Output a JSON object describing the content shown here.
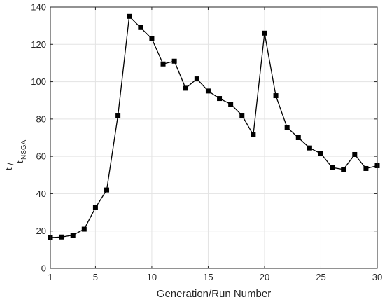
{
  "chart_data": {
    "type": "line",
    "title": "",
    "xlabel": "Generation/Run Number",
    "ylabel_parts": {
      "numerator": "t",
      "slash": "/",
      "denominator": "t",
      "denominator_subscript": "NSGA"
    },
    "xlim": [
      1,
      30
    ],
    "ylim": [
      0,
      140
    ],
    "xticks": [
      1,
      5,
      10,
      15,
      20,
      25,
      30
    ],
    "yticks": [
      0,
      20,
      40,
      60,
      80,
      100,
      120,
      140
    ],
    "grid": true,
    "marker": "square",
    "color": "#000000",
    "series": [
      {
        "x": [
          1,
          2,
          3,
          4,
          5,
          6,
          7,
          8,
          9,
          10,
          11,
          12,
          13,
          14,
          15,
          16,
          17,
          18,
          19,
          20,
          21,
          22,
          23,
          24,
          25,
          26,
          27,
          28,
          29,
          30
        ],
        "values": [
          16.5,
          16.8,
          17.8,
          21,
          32.5,
          42,
          82,
          135,
          129,
          123,
          109.5,
          111,
          96.5,
          101.5,
          95,
          91,
          88,
          82,
          71.5,
          126,
          92.5,
          75.5,
          70,
          64.5,
          61.5,
          54,
          53,
          61,
          53.5,
          55
        ]
      }
    ]
  }
}
